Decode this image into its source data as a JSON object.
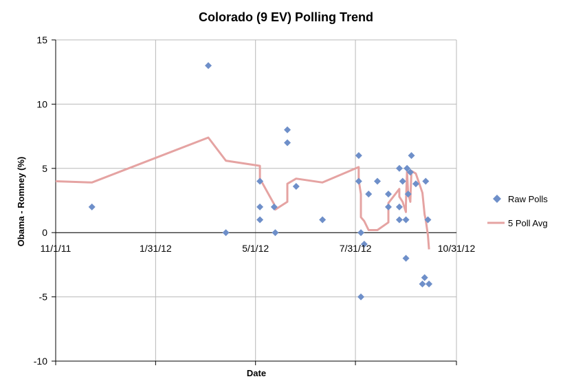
{
  "chart_data": {
    "type": "scatter",
    "title": "Colorado (9 EV) Polling Trend",
    "xlabel": "Date",
    "ylabel": "Obama - Romney (%)",
    "ylim": [
      -10,
      15
    ],
    "yticks": [
      15,
      10,
      5,
      0,
      -5,
      -10
    ],
    "xlim": [
      "2011-11-01",
      "2012-10-31"
    ],
    "xticks": [
      "11/1/11",
      "1/31/12",
      "5/1/12",
      "7/31/12",
      "10/31/12"
    ],
    "grid": true,
    "legend_position": "right",
    "colors": {
      "raw": "#6e8fc9",
      "avg": "#e5a3a2",
      "grid": "#b8b8b8"
    },
    "series": [
      {
        "name": "Raw Polls",
        "kind": "markers",
        "points": [
          {
            "x": "2011-12-04",
            "y": 2
          },
          {
            "x": "2012-03-19",
            "y": 13
          },
          {
            "x": "2012-04-04",
            "y": 0
          },
          {
            "x": "2012-05-05",
            "y": 4
          },
          {
            "x": "2012-05-05",
            "y": 2
          },
          {
            "x": "2012-05-05",
            "y": 1
          },
          {
            "x": "2012-05-18",
            "y": 2
          },
          {
            "x": "2012-05-19",
            "y": 0
          },
          {
            "x": "2012-05-30",
            "y": 8
          },
          {
            "x": "2012-05-30",
            "y": 7
          },
          {
            "x": "2012-06-07",
            "y": 3.6
          },
          {
            "x": "2012-07-01",
            "y": 1
          },
          {
            "x": "2012-08-03",
            "y": 6
          },
          {
            "x": "2012-08-03",
            "y": 4
          },
          {
            "x": "2012-08-05",
            "y": 0
          },
          {
            "x": "2012-08-05",
            "y": -5
          },
          {
            "x": "2012-08-08",
            "y": -0.9
          },
          {
            "x": "2012-08-12",
            "y": 3
          },
          {
            "x": "2012-08-20",
            "y": 4
          },
          {
            "x": "2012-08-30",
            "y": 3
          },
          {
            "x": "2012-08-30",
            "y": 2
          },
          {
            "x": "2012-09-09",
            "y": 5
          },
          {
            "x": "2012-09-09",
            "y": 2
          },
          {
            "x": "2012-09-09",
            "y": 1
          },
          {
            "x": "2012-09-12",
            "y": 4
          },
          {
            "x": "2012-09-15",
            "y": -2
          },
          {
            "x": "2012-09-15",
            "y": 1
          },
          {
            "x": "2012-09-16",
            "y": 5
          },
          {
            "x": "2012-09-17",
            "y": 3
          },
          {
            "x": "2012-09-19",
            "y": 4.7
          },
          {
            "x": "2012-09-20",
            "y": 6
          },
          {
            "x": "2012-09-24",
            "y": 3.8
          },
          {
            "x": "2012-09-30",
            "y": -4
          },
          {
            "x": "2012-10-02",
            "y": -3.5
          },
          {
            "x": "2012-10-03",
            "y": 4
          },
          {
            "x": "2012-10-05",
            "y": 1
          },
          {
            "x": "2012-10-06",
            "y": -4
          }
        ]
      },
      {
        "name": "5 Poll Avg",
        "kind": "line",
        "points": [
          {
            "x": "2011-11-01",
            "y": 4
          },
          {
            "x": "2011-12-04",
            "y": 3.9
          },
          {
            "x": "2012-03-19",
            "y": 7.4
          },
          {
            "x": "2012-04-04",
            "y": 5.6
          },
          {
            "x": "2012-05-05",
            "y": 5.2
          },
          {
            "x": "2012-05-05",
            "y": 4.6
          },
          {
            "x": "2012-05-05",
            "y": 4.2
          },
          {
            "x": "2012-05-18",
            "y": 2.2
          },
          {
            "x": "2012-05-19",
            "y": 1.8
          },
          {
            "x": "2012-05-30",
            "y": 2.4
          },
          {
            "x": "2012-05-30",
            "y": 3.8
          },
          {
            "x": "2012-06-07",
            "y": 4.2
          },
          {
            "x": "2012-07-01",
            "y": 3.9
          },
          {
            "x": "2012-08-03",
            "y": 5.1
          },
          {
            "x": "2012-08-03",
            "y": 4.1
          },
          {
            "x": "2012-08-05",
            "y": 3
          },
          {
            "x": "2012-08-05",
            "y": 1.2
          },
          {
            "x": "2012-08-08",
            "y": 0.9
          },
          {
            "x": "2012-08-12",
            "y": 0.2
          },
          {
            "x": "2012-08-20",
            "y": 0.2
          },
          {
            "x": "2012-08-30",
            "y": 0.8
          },
          {
            "x": "2012-08-30",
            "y": 2.3
          },
          {
            "x": "2012-09-09",
            "y": 3.4
          },
          {
            "x": "2012-09-09",
            "y": 2.8
          },
          {
            "x": "2012-09-12",
            "y": 2.4
          },
          {
            "x": "2012-09-15",
            "y": 1.6
          },
          {
            "x": "2012-09-15",
            "y": 2.2
          },
          {
            "x": "2012-09-16",
            "y": 4.8
          },
          {
            "x": "2012-09-17",
            "y": 3.1
          },
          {
            "x": "2012-09-19",
            "y": 2.4
          },
          {
            "x": "2012-09-20",
            "y": 4.8
          },
          {
            "x": "2012-09-24",
            "y": 4.6
          },
          {
            "x": "2012-09-30",
            "y": 3.1
          },
          {
            "x": "2012-10-02",
            "y": 1.4
          },
          {
            "x": "2012-10-03",
            "y": 1
          },
          {
            "x": "2012-10-05",
            "y": -0.2
          },
          {
            "x": "2012-10-06",
            "y": -1.3
          }
        ]
      }
    ]
  }
}
